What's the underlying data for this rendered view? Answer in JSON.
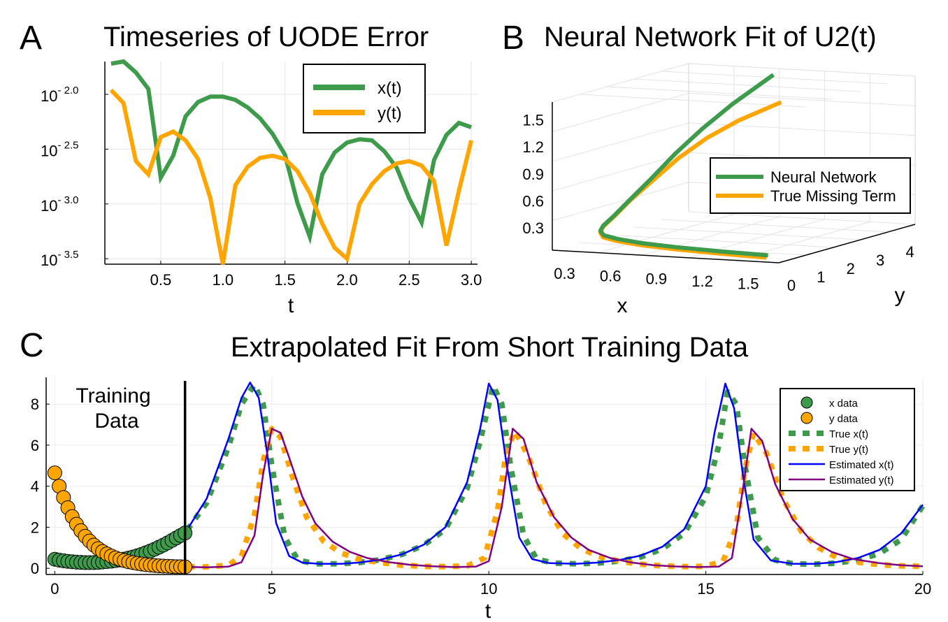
{
  "panels": {
    "a": {
      "letter": "A",
      "title": "Timeseries of UODE Error"
    },
    "b": {
      "letter": "B",
      "title": "Neural Network Fit of U2(t)"
    },
    "c": {
      "letter": "C",
      "title": "Extrapolated Fit From Short Training Data"
    }
  },
  "colors": {
    "green": "#3e9b4b",
    "orange": "#ffa500",
    "blue": "#0000ff",
    "purple": "#800080",
    "black": "#000000"
  },
  "chart_data": [
    {
      "id": "a",
      "type": "line",
      "title": "Timeseries of UODE Error",
      "xlabel": "t",
      "ylabel": "",
      "yscale": "log10",
      "xlim": [
        0.05,
        3.05
      ],
      "ylim_log10": [
        -3.55,
        -1.7
      ],
      "xticks": [
        0.5,
        1.0,
        1.5,
        2.0,
        2.5,
        3.0
      ],
      "xtick_labels": [
        "0.5",
        "1.0",
        "1.5",
        "2.0",
        "2.5",
        "3.0"
      ],
      "yticks_log10": [
        -2.0,
        -2.5,
        -3.0,
        -3.5
      ],
      "ytick_base": "10",
      "ytick_exponents": [
        "- 2.0",
        "- 2.5",
        "- 3.0",
        "- 3.5"
      ],
      "legend_position": "top-right",
      "x": [
        0.1,
        0.2,
        0.3,
        0.4,
        0.5,
        0.6,
        0.7,
        0.8,
        0.9,
        1.0,
        1.1,
        1.2,
        1.3,
        1.4,
        1.5,
        1.6,
        1.7,
        1.8,
        1.9,
        2.0,
        2.1,
        2.2,
        2.3,
        2.4,
        2.5,
        2.6,
        2.7,
        2.8,
        2.9,
        3.0
      ],
      "series": [
        {
          "name": "x(t)",
          "color": "#3e9b4b",
          "values_log10": [
            -1.72,
            -1.7,
            -1.8,
            -1.95,
            -2.76,
            -2.56,
            -2.2,
            -2.07,
            -2.02,
            -2.02,
            -2.05,
            -2.12,
            -2.22,
            -2.36,
            -2.55,
            -2.99,
            -3.3,
            -2.73,
            -2.53,
            -2.44,
            -2.41,
            -2.42,
            -2.52,
            -2.67,
            -2.95,
            -3.17,
            -2.6,
            -2.37,
            -2.26,
            -2.3
          ]
        },
        {
          "name": "y(t)",
          "color": "#ffa500",
          "values_log10": [
            -1.96,
            -2.08,
            -2.61,
            -2.73,
            -2.39,
            -2.34,
            -2.42,
            -2.59,
            -2.95,
            -3.55,
            -2.83,
            -2.66,
            -2.58,
            -2.56,
            -2.59,
            -2.7,
            -2.9,
            -3.18,
            -3.4,
            -3.5,
            -3.0,
            -2.82,
            -2.7,
            -2.63,
            -2.61,
            -2.65,
            -2.79,
            -3.38,
            -2.88,
            -2.42
          ]
        }
      ]
    },
    {
      "id": "b",
      "type": "line3d",
      "title": "Neural Network Fit of U2(t)",
      "xlabel": "x",
      "ylabel": "y",
      "zlabel": "",
      "xlim": [
        0.22,
        1.7
      ],
      "ylim": [
        0,
        4.6
      ],
      "zlim": [
        0.05,
        1.7
      ],
      "xticks": [
        "0.3",
        "0.6",
        "0.9",
        "1.2",
        "1.5"
      ],
      "yticks": [
        "0",
        "1",
        "2",
        "3",
        "4"
      ],
      "zticks": [
        "0.3",
        "0.6",
        "0.9",
        "1.2",
        "1.5"
      ],
      "legend_position": "right",
      "series": [
        {
          "name": "Neural Network",
          "color": "#3e9b4b",
          "points": [
            [
              1.62,
              0.05,
              0.12
            ],
            [
              1.3,
              0.1,
              0.13
            ],
            [
              1.0,
              0.18,
              0.14
            ],
            [
              0.75,
              0.3,
              0.15
            ],
            [
              0.55,
              0.5,
              0.16
            ],
            [
              0.42,
              0.7,
              0.17
            ],
            [
              0.35,
              0.95,
              0.19
            ],
            [
              0.32,
              1.2,
              0.22
            ],
            [
              0.33,
              1.5,
              0.3
            ],
            [
              0.36,
              1.9,
              0.45
            ],
            [
              0.42,
              2.3,
              0.65
            ],
            [
              0.5,
              2.7,
              0.9
            ],
            [
              0.6,
              3.1,
              1.15
            ],
            [
              0.72,
              3.5,
              1.4
            ],
            [
              0.9,
              3.95,
              1.7
            ]
          ]
        },
        {
          "name": "True Missing Term",
          "color": "#ffa500",
          "points": [
            [
              1.62,
              0.0,
              0.1
            ],
            [
              1.3,
              0.06,
              0.11
            ],
            [
              1.0,
              0.14,
              0.12
            ],
            [
              0.75,
              0.27,
              0.13
            ],
            [
              0.55,
              0.47,
              0.14
            ],
            [
              0.42,
              0.68,
              0.15
            ],
            [
              0.35,
              0.95,
              0.17
            ],
            [
              0.32,
              1.2,
              0.21
            ],
            [
              0.33,
              1.5,
              0.29
            ],
            [
              0.36,
              1.9,
              0.44
            ],
            [
              0.43,
              2.3,
              0.63
            ],
            [
              0.52,
              2.7,
              0.85
            ],
            [
              0.63,
              3.1,
              1.05
            ],
            [
              0.76,
              3.5,
              1.22
            ],
            [
              0.95,
              3.95,
              1.4
            ]
          ]
        }
      ]
    },
    {
      "id": "c",
      "type": "line",
      "title": "Extrapolated Fit From Short Training Data",
      "xlabel": "t",
      "ylabel": "",
      "xlim": [
        -0.2,
        20
      ],
      "ylim": [
        -0.3,
        9.3
      ],
      "xticks": [
        0,
        5,
        10,
        15,
        20
      ],
      "xtick_labels": [
        "0",
        "5",
        "10",
        "15",
        "20"
      ],
      "yticks": [
        0,
        2,
        4,
        6,
        8
      ],
      "ytick_labels": [
        "0",
        "2",
        "4",
        "6",
        "8"
      ],
      "legend_position": "top-right",
      "annotation": {
        "line1": "Training",
        "line2": "Data",
        "boundary_x": 3.0
      },
      "scatter": [
        {
          "name": "x data",
          "color": "#3e9b4b",
          "x": [
            0.0,
            0.1,
            0.2,
            0.3,
            0.4,
            0.5,
            0.6,
            0.7,
            0.8,
            0.9,
            1.0,
            1.1,
            1.2,
            1.3,
            1.4,
            1.5,
            1.6,
            1.7,
            1.8,
            1.9,
            2.0,
            2.1,
            2.2,
            2.3,
            2.4,
            2.5,
            2.6,
            2.7,
            2.8,
            2.9,
            3.0
          ],
          "y": [
            0.44,
            0.4,
            0.37,
            0.34,
            0.32,
            0.3,
            0.29,
            0.28,
            0.28,
            0.28,
            0.29,
            0.31,
            0.33,
            0.35,
            0.38,
            0.41,
            0.45,
            0.5,
            0.55,
            0.61,
            0.68,
            0.76,
            0.84,
            0.93,
            1.03,
            1.13,
            1.24,
            1.36,
            1.48,
            1.6,
            1.72
          ]
        },
        {
          "name": "y data",
          "color": "#ffa500",
          "x": [
            0.0,
            0.1,
            0.2,
            0.3,
            0.4,
            0.5,
            0.6,
            0.7,
            0.8,
            0.9,
            1.0,
            1.1,
            1.2,
            1.3,
            1.4,
            1.5,
            1.6,
            1.7,
            1.8,
            1.9,
            2.0,
            2.1,
            2.2,
            2.3,
            2.4,
            2.5,
            2.6,
            2.7,
            2.8,
            2.9,
            3.0
          ],
          "y": [
            4.65,
            4.0,
            3.45,
            2.95,
            2.52,
            2.15,
            1.83,
            1.56,
            1.33,
            1.13,
            0.96,
            0.82,
            0.7,
            0.6,
            0.51,
            0.44,
            0.38,
            0.32,
            0.28,
            0.24,
            0.21,
            0.18,
            0.16,
            0.14,
            0.12,
            0.11,
            0.1,
            0.09,
            0.08,
            0.08,
            0.07
          ]
        }
      ],
      "series": [
        {
          "name": "True x(t)",
          "color": "#3e9b4b",
          "style": "dotted",
          "x": [
            0,
            0.5,
            1,
            1.5,
            2,
            2.5,
            3,
            3.5,
            4,
            4.3,
            4.6,
            4.8,
            5,
            5.3,
            5.6,
            6,
            6.5,
            7,
            7.5,
            8,
            8.5,
            9,
            9.5,
            9.8,
            10.1,
            10.3,
            10.5,
            10.8,
            11.1,
            11.5,
            12,
            12.5,
            13,
            13.5,
            14,
            14.5,
            15,
            15.3,
            15.5,
            15.7,
            15.9,
            16.2,
            16.6,
            17,
            17.5,
            18,
            18.5,
            19,
            19.5,
            20
          ],
          "y": [
            0.44,
            0.3,
            0.29,
            0.41,
            0.68,
            1.13,
            1.72,
            3.2,
            5.9,
            8.0,
            8.95,
            8.0,
            5.0,
            1.5,
            0.4,
            0.22,
            0.22,
            0.28,
            0.42,
            0.68,
            1.13,
            1.9,
            3.9,
            6.2,
            8.9,
            8.0,
            5.0,
            1.6,
            0.45,
            0.25,
            0.22,
            0.25,
            0.35,
            0.55,
            0.95,
            1.7,
            3.5,
            6.0,
            8.6,
            8.0,
            5.0,
            1.5,
            0.4,
            0.22,
            0.2,
            0.25,
            0.4,
            0.72,
            1.4,
            3.05
          ]
        },
        {
          "name": "True y(t)",
          "color": "#ffa500",
          "style": "dotted",
          "x": [
            0,
            0.5,
            1,
            1.5,
            2,
            2.5,
            3,
            3.5,
            4,
            4.3,
            4.6,
            4.8,
            5,
            5.2,
            5.5,
            5.8,
            6.2,
            6.6,
            7,
            7.5,
            8,
            8.5,
            9,
            9.5,
            9.9,
            10.2,
            10.4,
            10.6,
            10.9,
            11.3,
            11.7,
            12.1,
            12.5,
            13,
            13.5,
            14,
            14.5,
            15,
            15.4,
            15.7,
            15.9,
            16.1,
            16.4,
            16.8,
            17.2,
            17.6,
            18,
            18.5,
            19,
            19.5,
            20
          ],
          "y": [
            4.65,
            2.15,
            0.96,
            0.44,
            0.21,
            0.11,
            0.07,
            0.07,
            0.15,
            0.6,
            2.6,
            5.2,
            6.8,
            6.4,
            4.3,
            2.5,
            1.3,
            0.75,
            0.45,
            0.28,
            0.15,
            0.1,
            0.08,
            0.12,
            0.5,
            2.8,
            5.6,
            6.7,
            5.5,
            3.2,
            1.7,
            1.0,
            0.6,
            0.35,
            0.2,
            0.12,
            0.08,
            0.1,
            0.35,
            2.0,
            4.8,
            6.6,
            5.6,
            3.3,
            1.8,
            1.0,
            0.55,
            0.3,
            0.18,
            0.12,
            0.1
          ]
        },
        {
          "name": "Estimated x(t)",
          "color": "#0000ff",
          "style": "solid",
          "x": [
            0,
            0.5,
            1,
            1.5,
            2,
            2.5,
            3,
            3.5,
            4,
            4.3,
            4.5,
            4.7,
            4.9,
            5.1,
            5.4,
            5.7,
            6.1,
            6.6,
            7,
            7.5,
            8,
            8.5,
            9,
            9.5,
            9.8,
            10.0,
            10.2,
            10.4,
            10.7,
            11.0,
            11.4,
            12,
            12.5,
            13,
            13.5,
            14,
            14.5,
            15,
            15.2,
            15.45,
            15.65,
            15.85,
            16.1,
            16.5,
            17,
            17.5,
            18,
            18.5,
            19,
            19.5,
            20
          ],
          "y": [
            0.44,
            0.3,
            0.29,
            0.41,
            0.68,
            1.13,
            1.72,
            3.4,
            6.3,
            8.3,
            9.05,
            8.3,
            5.5,
            2.2,
            0.6,
            0.28,
            0.22,
            0.22,
            0.28,
            0.42,
            0.68,
            1.15,
            2.0,
            4.2,
            6.8,
            9.0,
            8.2,
            5.2,
            1.5,
            0.45,
            0.25,
            0.22,
            0.28,
            0.4,
            0.62,
            1.05,
            1.9,
            4.0,
            6.6,
            9.0,
            7.8,
            4.6,
            1.4,
            0.38,
            0.22,
            0.22,
            0.3,
            0.5,
            0.9,
            1.7,
            3.1
          ]
        },
        {
          "name": "Estimated y(t)",
          "color": "#800080",
          "style": "solid",
          "x": [
            0,
            0.5,
            1,
            1.5,
            2,
            2.5,
            3,
            3.5,
            4,
            4.3,
            4.6,
            4.8,
            5.0,
            5.2,
            5.4,
            5.7,
            6.0,
            6.4,
            6.8,
            7.2,
            7.7,
            8.2,
            8.7,
            9.2,
            9.7,
            10.0,
            10.3,
            10.55,
            10.8,
            11.1,
            11.5,
            11.9,
            12.3,
            12.8,
            13.3,
            13.8,
            14.3,
            14.8,
            15.3,
            15.6,
            15.85,
            16.05,
            16.3,
            16.6,
            17,
            17.4,
            17.9,
            18.4,
            19,
            19.5,
            20
          ],
          "y": [
            4.65,
            2.15,
            0.96,
            0.44,
            0.21,
            0.11,
            0.07,
            0.05,
            0.08,
            0.3,
            1.6,
            4.6,
            6.8,
            6.6,
            5.4,
            3.5,
            2.2,
            1.3,
            0.8,
            0.5,
            0.3,
            0.17,
            0.1,
            0.06,
            0.08,
            0.35,
            3.0,
            6.8,
            6.3,
            4.2,
            2.5,
            1.5,
            0.9,
            0.5,
            0.28,
            0.15,
            0.09,
            0.06,
            0.08,
            0.5,
            3.8,
            6.8,
            6.2,
            4.1,
            2.4,
            1.4,
            0.8,
            0.45,
            0.25,
            0.15,
            0.1
          ]
        }
      ]
    }
  ]
}
